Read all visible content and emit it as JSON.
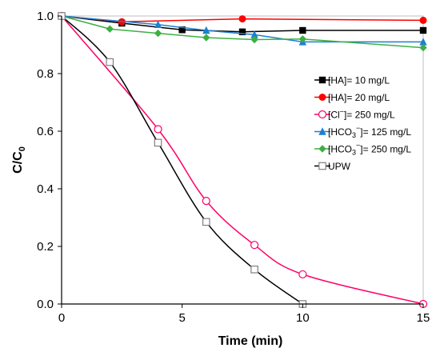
{
  "chart_data": {
    "type": "line",
    "xlabel": "Time (min)",
    "ylabel": {
      "main": "C/C",
      "sub": "0"
    },
    "xlim": [
      0,
      15
    ],
    "ylim": [
      0,
      1.0
    ],
    "xticks": [
      "0",
      "5",
      "10",
      "15"
    ],
    "yticks": [
      "0.0",
      "0.2",
      "0.4",
      "0.6",
      "0.8",
      "1.0"
    ],
    "grid": false,
    "legend_position": "right",
    "series": [
      {
        "name": "[HA]= 10 mg/L",
        "legend": {
          "pre": "[HA]= 10 mg/L"
        },
        "marker": "square-filled",
        "color": "#000000",
        "smooth": false,
        "x": [
          0,
          2.5,
          5,
          7.5,
          10,
          15
        ],
        "y": [
          1.0,
          0.975,
          0.952,
          0.945,
          0.95,
          0.95
        ]
      },
      {
        "name": "[HA]= 20 mg/L",
        "legend": {
          "pre": "[HA]= 20 mg/L"
        },
        "marker": "circle-filled",
        "color": "#ff0000",
        "smooth": false,
        "x": [
          0,
          2.5,
          7.5,
          15
        ],
        "y": [
          1.0,
          0.98,
          0.99,
          0.985
        ]
      },
      {
        "name": "[Cl⁻]= 250 mg/L",
        "legend": {
          "pre": "[Cl",
          "sup": "−",
          "post": "]= 250 mg/L"
        },
        "marker": "circle-open",
        "color": "#ff0066",
        "smooth": true,
        "x": [
          0,
          4,
          6,
          8,
          10,
          15
        ],
        "y": [
          1.0,
          0.607,
          0.358,
          0.205,
          0.103,
          0.0
        ]
      },
      {
        "name": "[HCO₃⁻]= 125 mg/L",
        "legend": {
          "pre": "[HCO",
          "sub": "3",
          "sup": "−",
          "post": "]= 125 mg/L"
        },
        "marker": "triangle-filled",
        "color": "#1e7fd0",
        "smooth": false,
        "x": [
          0,
          4,
          6,
          8,
          10,
          15
        ],
        "y": [
          1.0,
          0.97,
          0.95,
          0.935,
          0.91,
          0.91
        ]
      },
      {
        "name": "[HCO₃⁻]= 250 mg/L",
        "legend": {
          "pre": "[HCO",
          "sub": "3",
          "sup": "−",
          "post": "]= 250 mg/L"
        },
        "marker": "diamond-filled",
        "color": "#3cb043",
        "smooth": false,
        "x": [
          0,
          2,
          4,
          6,
          8,
          10,
          15
        ],
        "y": [
          1.0,
          0.955,
          0.94,
          0.925,
          0.918,
          0.92,
          0.89
        ]
      },
      {
        "name": "UPW",
        "legend": {
          "pre": "UPW"
        },
        "marker": "square-open",
        "color": "#000000",
        "marker_color": "#808080",
        "smooth": true,
        "x": [
          0,
          2,
          4,
          6,
          8,
          10
        ],
        "y": [
          1.0,
          0.84,
          0.56,
          0.285,
          0.12,
          0.0
        ]
      }
    ]
  }
}
